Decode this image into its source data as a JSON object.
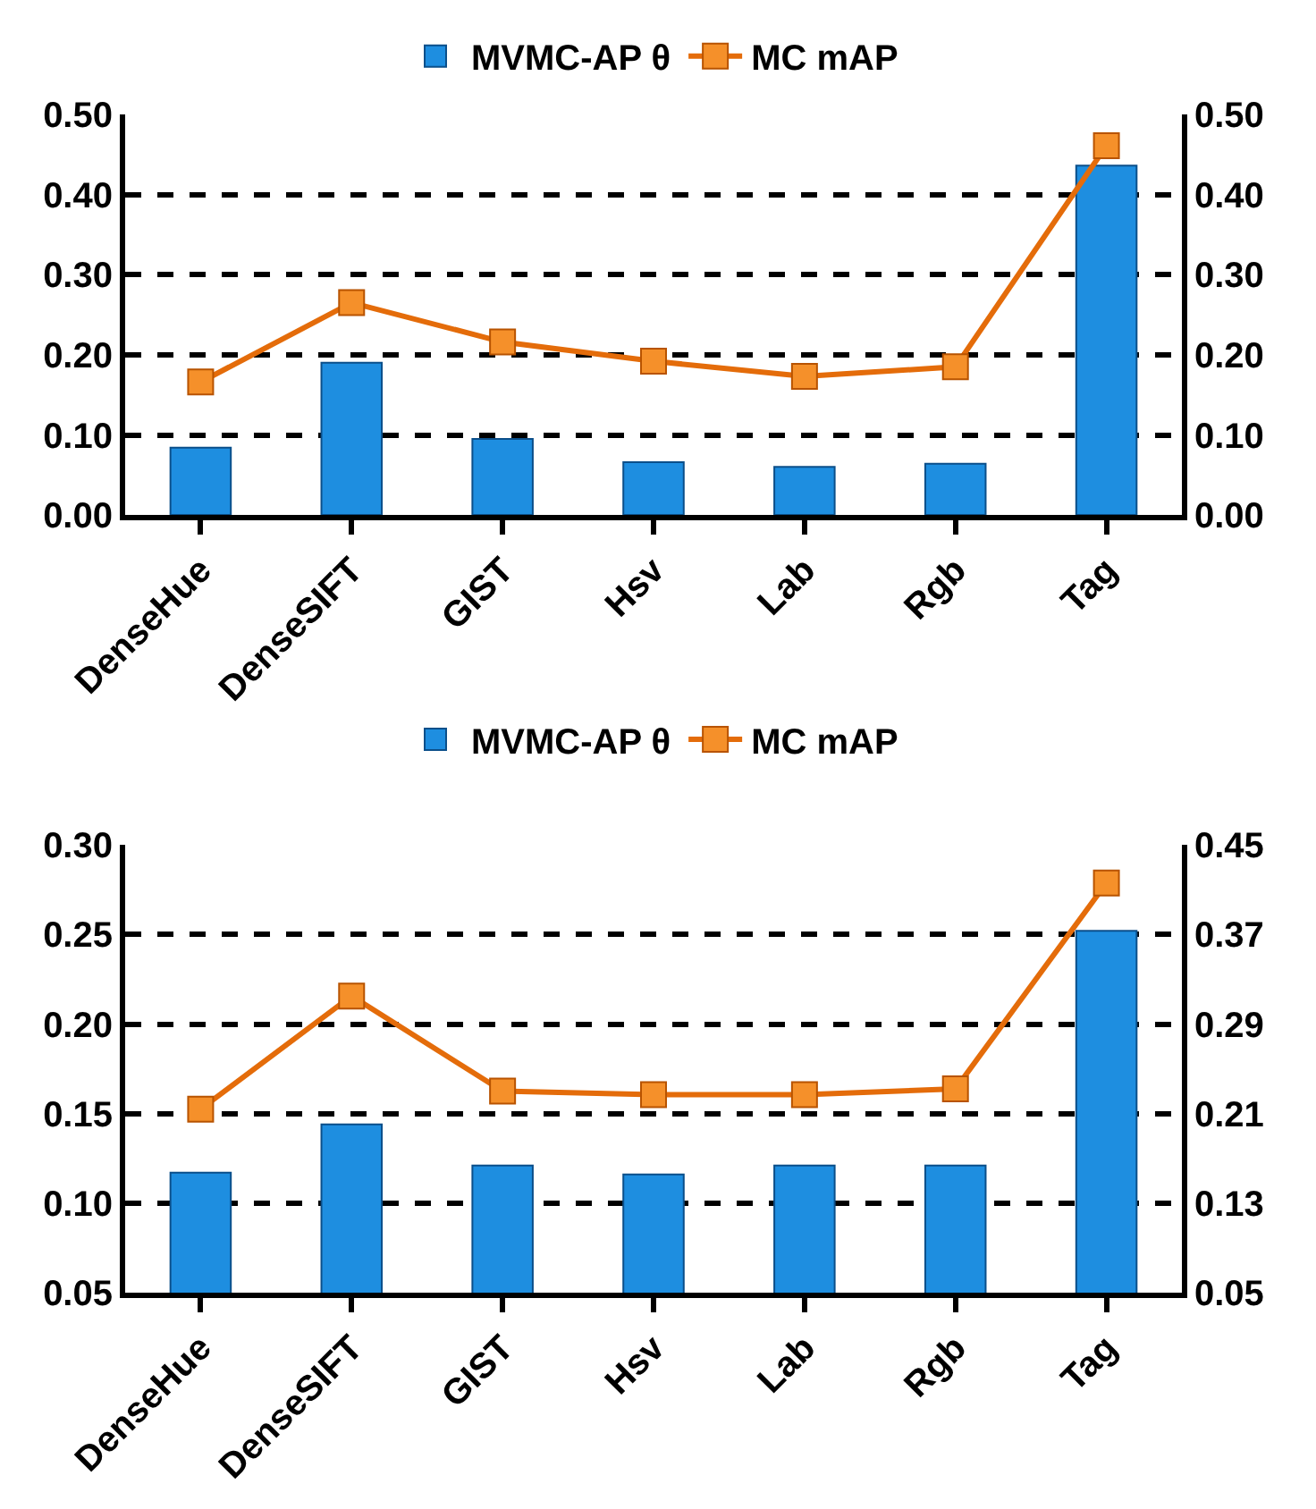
{
  "chart_data": [
    {
      "type": "bar",
      "categories": [
        "DenseHue",
        "DenseSIFT",
        "GIST",
        "Hsv",
        "Lab",
        "Rgb",
        "Tag"
      ],
      "series": [
        {
          "name": "MVMC-AP θ",
          "color": "#1e8ee0",
          "values": [
            0.084,
            0.19,
            0.095,
            0.066,
            0.06,
            0.064,
            0.436
          ]
        },
        {
          "name": "MC mAP",
          "type": "line",
          "axis": "y2",
          "color": "#e46c0a",
          "values": [
            0.166,
            0.265,
            0.216,
            0.192,
            0.173,
            0.185,
            0.461
          ]
        }
      ],
      "ylim": [
        0,
        0.5
      ],
      "yticks": [
        {
          "value": 0,
          "label": "0.00"
        },
        {
          "value": 0.1,
          "label": "0.10"
        },
        {
          "value": 0.2,
          "label": "0.20"
        },
        {
          "value": 0.3,
          "label": "0.30"
        },
        {
          "value": 0.4,
          "label": "0.40"
        },
        {
          "value": 0.5,
          "label": "0.50"
        }
      ],
      "y2lim": [
        0,
        0.5
      ],
      "y2ticks": [
        {
          "value": 0,
          "label": "0.00"
        },
        {
          "value": 0.1,
          "label": "0.10"
        },
        {
          "value": 0.2,
          "label": "0.20"
        },
        {
          "value": 0.3,
          "label": "0.30"
        },
        {
          "value": 0.4,
          "label": "0.40"
        },
        {
          "value": 0.5,
          "label": "0.50"
        }
      ],
      "grid": "y",
      "legend": "top",
      "marker": "square",
      "line_style": "solid"
    },
    {
      "type": "bar",
      "categories": [
        "DenseHue",
        "DenseSIFT",
        "GIST",
        "Hsv",
        "Lab",
        "Rgb",
        "Tag"
      ],
      "series": [
        {
          "name": "MVMC-AP θ",
          "color": "#1e8ee0",
          "values": [
            0.117,
            0.144,
            0.121,
            0.116,
            0.121,
            0.121,
            0.252
          ]
        },
        {
          "name": "MC mAP",
          "type": "line",
          "axis": "y2",
          "color": "#e46c0a",
          "values": [
            0.214,
            0.315,
            0.23,
            0.227,
            0.227,
            0.232,
            0.416
          ]
        }
      ],
      "ylim": [
        0.05,
        0.3
      ],
      "yticks": [
        {
          "value": 0.05,
          "label": "0.05"
        },
        {
          "value": 0.1,
          "label": "0.10"
        },
        {
          "value": 0.15,
          "label": "0.15"
        },
        {
          "value": 0.2,
          "label": "0.20"
        },
        {
          "value": 0.25,
          "label": "0.25"
        },
        {
          "value": 0.3,
          "label": "0.30"
        }
      ],
      "y2lim": [
        0.05,
        0.45
      ],
      "y2ticks": [
        0.05,
        0.13,
        0.21,
        0.29,
        0.37,
        0.45
      ],
      "grid": "y",
      "legend": "top",
      "marker": "square",
      "line_style": "solid"
    }
  ]
}
